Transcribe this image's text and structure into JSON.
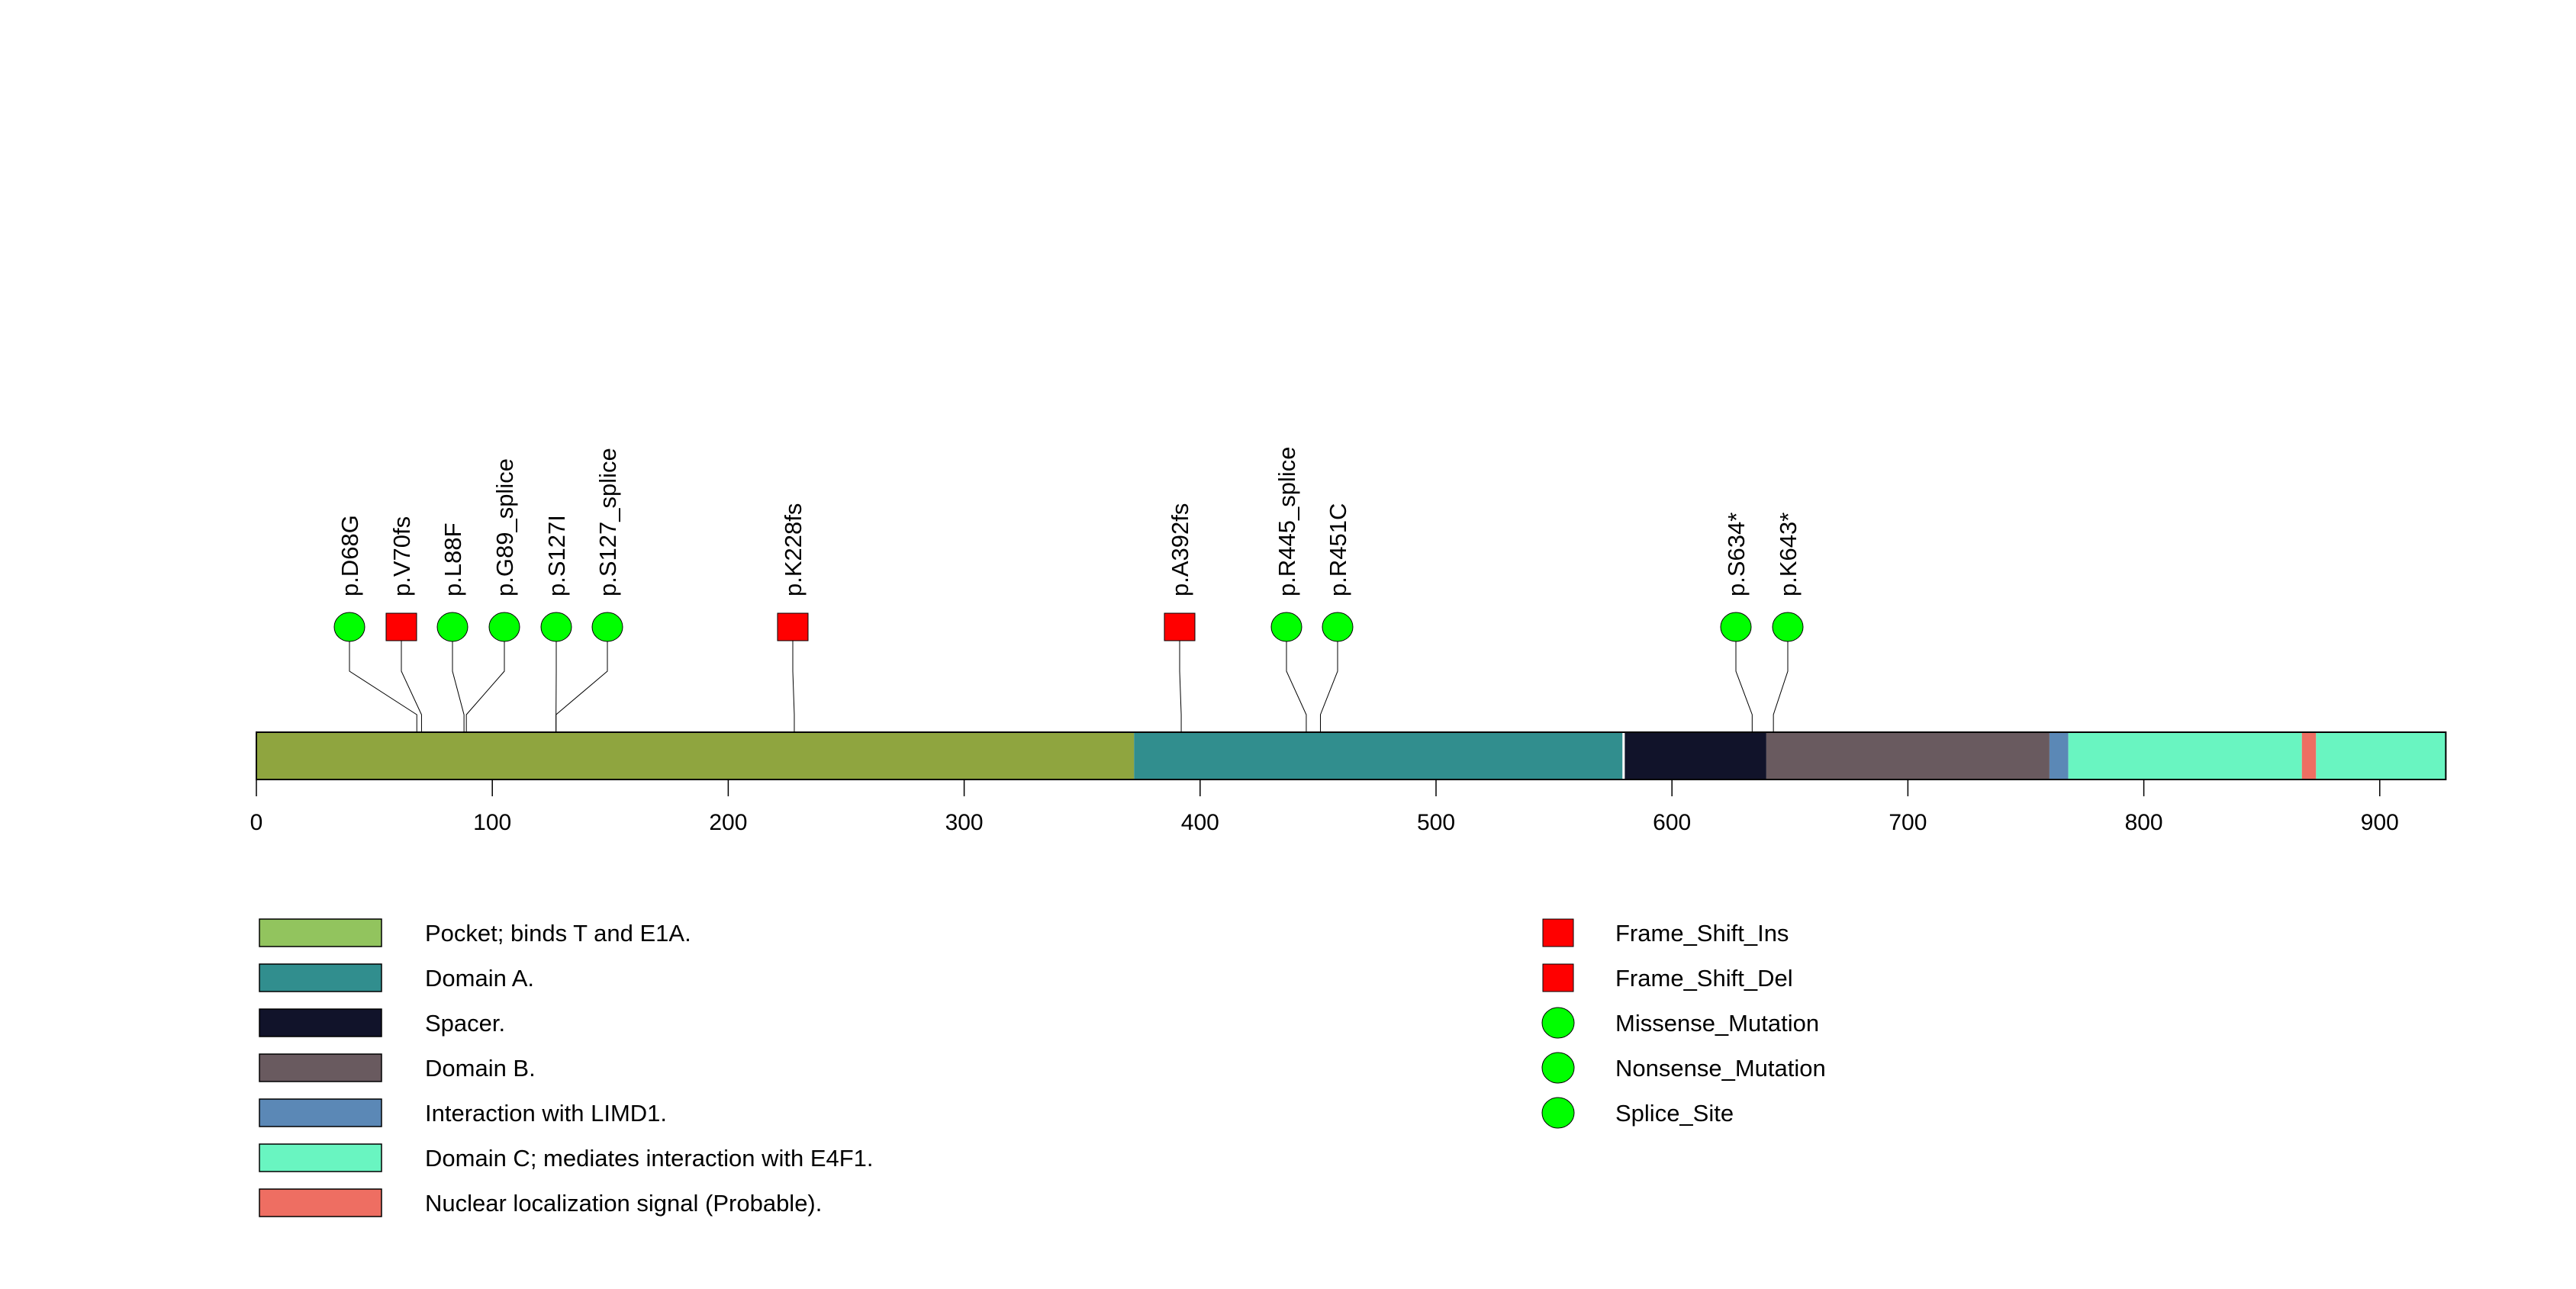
{
  "chart_data": {
    "type": "lollipop",
    "protein_length": 928,
    "x_ticks": [
      0,
      100,
      200,
      300,
      400,
      500,
      600,
      700,
      800,
      900
    ],
    "xlim": [
      0,
      928
    ],
    "domains": [
      {
        "name": "Pocket; binds T and E1A.",
        "start": 0,
        "end": 372,
        "color": "#8FA53F",
        "legend_color": "#92C45E"
      },
      {
        "name": "Domain A.",
        "start": 372,
        "end": 579,
        "color": "#318E8E",
        "legend_color": "#318E8E"
      },
      {
        "name": "Spacer.",
        "start": 580,
        "end": 640,
        "color": "#11132A",
        "legend_color": "#11132A"
      },
      {
        "name": "Domain B.",
        "start": 640,
        "end": 760,
        "color": "#695A5F",
        "legend_color": "#695A5F"
      },
      {
        "name": "Interaction with LIMD1.",
        "start": 760,
        "end": 768,
        "color": "#5B88B6",
        "legend_color": "#5B88B6"
      },
      {
        "name": "Domain C; mediates interaction with E4F1.",
        "start": 768,
        "end": 867,
        "color": "#69F5C1",
        "legend_color": "#69F5C1"
      },
      {
        "name": "Nuclear localization signal (Probable).",
        "start": 867,
        "end": 873,
        "color": "#EE6E62",
        "legend_color": "#EE6E62"
      },
      {
        "name": "",
        "start": 873,
        "end": 928,
        "color": "#69F5C1"
      }
    ],
    "mutations": [
      {
        "label": "p.D68G",
        "position": 68,
        "type": "Missense_Mutation"
      },
      {
        "label": "p.V70fs",
        "position": 70,
        "type": "Frame_Shift_Del"
      },
      {
        "label": "p.L88F",
        "position": 88,
        "type": "Missense_Mutation"
      },
      {
        "label": "p.G89_splice",
        "position": 89,
        "type": "Splice_Site"
      },
      {
        "label": "p.S127I",
        "position": 127,
        "type": "Missense_Mutation"
      },
      {
        "label": "p.S127_splice",
        "position": 127,
        "type": "Splice_Site"
      },
      {
        "label": "p.K228fs",
        "position": 228,
        "type": "Frame_Shift_Del"
      },
      {
        "label": "p.A392fs",
        "position": 392,
        "type": "Frame_Shift_Del"
      },
      {
        "label": "p.R445_splice",
        "position": 445,
        "type": "Splice_Site"
      },
      {
        "label": "p.R451C",
        "position": 451,
        "type": "Missense_Mutation"
      },
      {
        "label": "p.S634*",
        "position": 634,
        "type": "Nonsense_Mutation"
      },
      {
        "label": "p.K643*",
        "position": 643,
        "type": "Nonsense_Mutation"
      }
    ],
    "mutation_legend": [
      {
        "name": "Frame_Shift_Ins",
        "shape": "square",
        "color": "#FF0000"
      },
      {
        "name": "Frame_Shift_Del",
        "shape": "square",
        "color": "#FF0000"
      },
      {
        "name": "Missense_Mutation",
        "shape": "circle",
        "color": "#00FF00"
      },
      {
        "name": "Nonsense_Mutation",
        "shape": "circle",
        "color": "#00FF00"
      },
      {
        "name": "Splice_Site",
        "shape": "circle",
        "color": "#00FF00"
      }
    ]
  }
}
